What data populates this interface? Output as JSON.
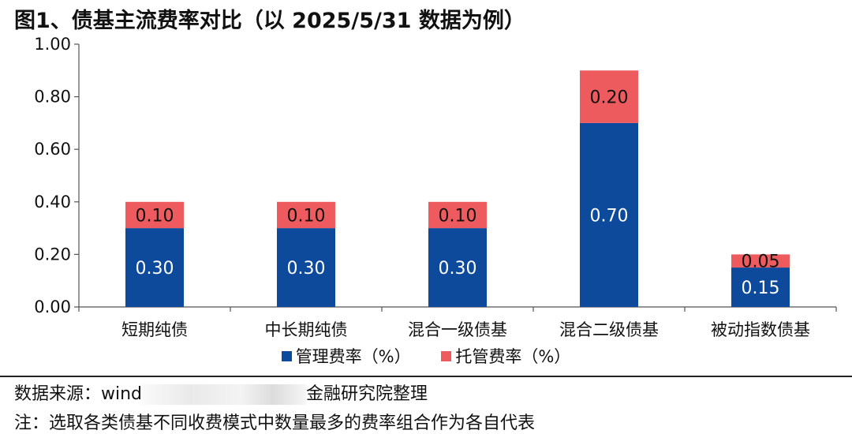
{
  "title": "图1、债基主流费率对比（以 2025/5/31 数据为例）",
  "source_prefix": "数据来源：wind",
  "source_suffix": "金融研究院整理",
  "note": "注：选取各类债基不同收费模式中数量最多的费率组合作为各自代表",
  "colors": {
    "management": "#0d4a9b",
    "custody": "#ee5b5e"
  },
  "chart_data": {
    "type": "bar",
    "stacked": true,
    "categories": [
      "短期纯债",
      "中长期纯债",
      "混合一级债基",
      "混合二级债基",
      "被动指数债基"
    ],
    "series": [
      {
        "name": "管理费率（%）",
        "values": [
          0.3,
          0.3,
          0.3,
          0.7,
          0.15
        ]
      },
      {
        "name": "托管费率（%）",
        "values": [
          0.1,
          0.1,
          0.1,
          0.2,
          0.05
        ]
      }
    ],
    "yticks": [
      "0.00",
      "0.20",
      "0.40",
      "0.60",
      "0.80",
      "1.00"
    ],
    "ylim": [
      0,
      1.0
    ],
    "grid": false,
    "legend_position": "bottom"
  }
}
